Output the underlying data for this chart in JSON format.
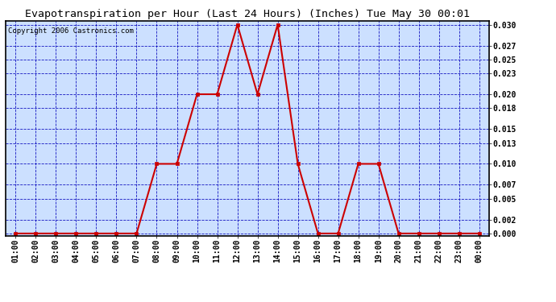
{
  "title": "Evapotranspiration per Hour (Last 24 Hours) (Inches) Tue May 30 00:01",
  "copyright": "Copyright 2006 Castronics.com",
  "hours": [
    "01:00",
    "02:00",
    "03:00",
    "04:00",
    "05:00",
    "06:00",
    "07:00",
    "08:00",
    "09:00",
    "10:00",
    "11:00",
    "12:00",
    "13:00",
    "14:00",
    "15:00",
    "16:00",
    "17:00",
    "18:00",
    "19:00",
    "20:00",
    "21:00",
    "22:00",
    "23:00",
    "00:00"
  ],
  "values": [
    0.0,
    0.0,
    0.0,
    0.0,
    0.0,
    0.0,
    0.0,
    0.01,
    0.01,
    0.02,
    0.02,
    0.03,
    0.02,
    0.03,
    0.01,
    0.0,
    0.0,
    0.01,
    0.01,
    0.0,
    0.0,
    0.0,
    0.0,
    0.0
  ],
  "line_color": "#cc0000",
  "marker_color": "#cc0000",
  "bg_color": "#ffffff",
  "plot_bg_color": "#cce0ff",
  "grid_color": "#0000bb",
  "border_color": "#000000",
  "title_fontsize": 9.5,
  "copyright_fontsize": 6.5,
  "tick_fontsize": 7,
  "ylim": [
    0.0,
    0.03
  ],
  "yticks": [
    0.0,
    0.002,
    0.005,
    0.007,
    0.01,
    0.013,
    0.015,
    0.018,
    0.02,
    0.023,
    0.025,
    0.027,
    0.03
  ]
}
